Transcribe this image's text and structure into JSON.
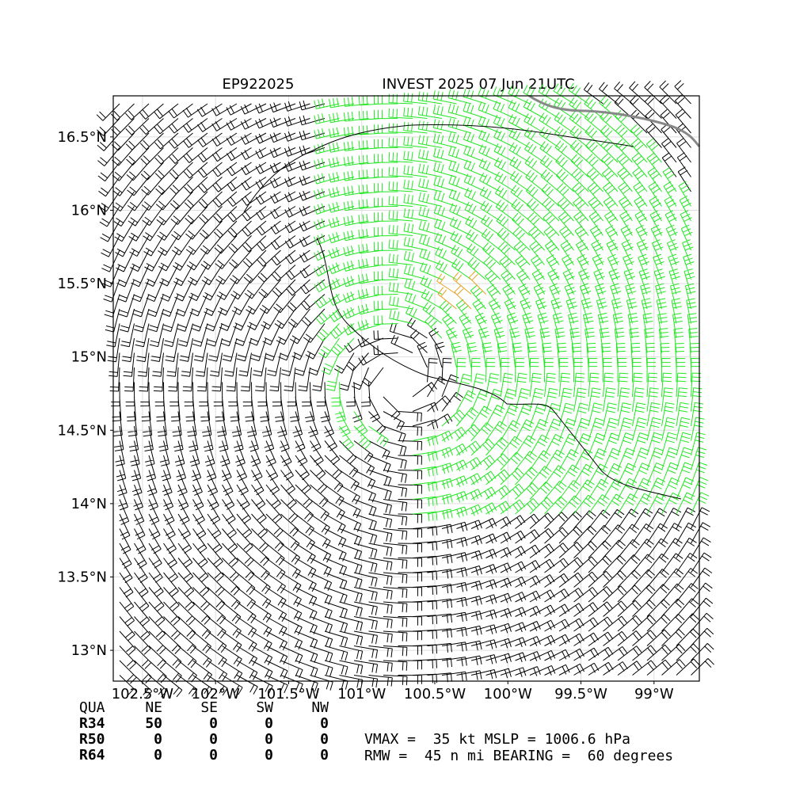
{
  "header": {
    "storm_id": "EP922025",
    "title": "INVEST 2025 07 Jun 21UTC"
  },
  "map": {
    "xlim": [
      -102.7,
      -98.69
    ],
    "ylim": [
      12.79,
      16.78
    ],
    "xticks": [
      {
        "value": -102.5,
        "label": "102.5°W"
      },
      {
        "value": -102,
        "label": "102°W"
      },
      {
        "value": -101.5,
        "label": "101.5°W"
      },
      {
        "value": -101,
        "label": "101°W"
      },
      {
        "value": -100.5,
        "label": "100.5°W"
      },
      {
        "value": -100,
        "label": "100°W"
      },
      {
        "value": -99.5,
        "label": "99.5°W"
      },
      {
        "value": -99,
        "label": "99°W"
      }
    ],
    "yticks": [
      {
        "value": 16.5,
        "label": "16.5°N"
      },
      {
        "value": 16,
        "label": "16°N"
      },
      {
        "value": 15.5,
        "label": "15.5°N"
      },
      {
        "value": 15,
        "label": "15°N"
      },
      {
        "value": 14.5,
        "label": "14.5°N"
      },
      {
        "value": 14,
        "label": "14°N"
      },
      {
        "value": 13.5,
        "label": "13.5°N"
      },
      {
        "value": 13,
        "label": "13°N"
      }
    ]
  },
  "radii_table": {
    "header": [
      "QUA",
      "NE",
      "SE",
      "SW",
      "NW"
    ],
    "rows": [
      [
        "R34",
        "50",
        "0",
        "0",
        "0"
      ],
      [
        "R50",
        "0",
        "0",
        "0",
        "0"
      ],
      [
        "R64",
        "0",
        "0",
        "0",
        "0"
      ]
    ]
  },
  "summary": [
    "VMAX =  35 kt MSLP = 1006.6 hPa",
    "RMW =  45 n mi BEARING =  60 degrees"
  ]
}
